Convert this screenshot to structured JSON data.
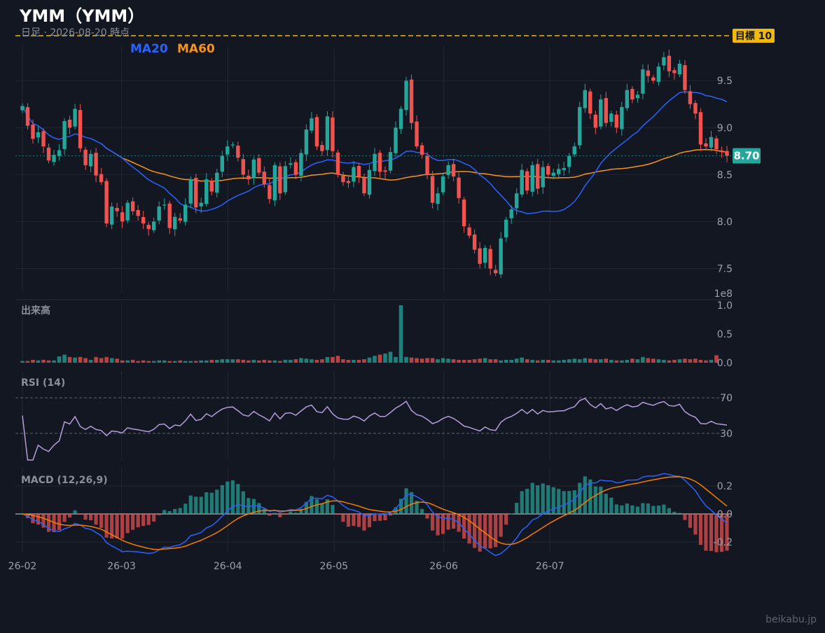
{
  "title": "YMM（YMM）",
  "subtitle": "日足 · 2026-08-20 時点",
  "watermark": "beikabu.jp",
  "colors": {
    "background": "#131722",
    "up": "#26a69a",
    "down": "#ef5350",
    "ma20": "#2962ff",
    "ma60": "#f7931a",
    "target": "#f0b90b",
    "rsi": "#b39ddb",
    "macd": "#2962ff",
    "signal": "#f57c00",
    "grid": "#232733",
    "text": "#9aa0ac"
  },
  "chart_data": [
    {
      "type": "candlestick",
      "panel": "price",
      "legend": [
        {
          "name": "MA20",
          "color": "#2962ff"
        },
        {
          "name": "MA60",
          "color": "#f7931a"
        }
      ],
      "x_tick_labels": [
        "26-02",
        "26-03",
        "26-04",
        "26-05",
        "26-06",
        "26-07"
      ],
      "x_tick_dates": [
        "2026-02-02",
        "2026-03-02",
        "2026-04-01",
        "2026-05-01",
        "2026-06-01",
        "2026-07-01"
      ],
      "y_ticks": [
        "7.5",
        "8.0",
        "8.5",
        "9.0",
        "9.5"
      ],
      "ylim": [
        7.25,
        9.8
      ],
      "last_price": 8.7,
      "last_price_label": "8.70",
      "target": 10,
      "target_label": "目標 10",
      "closes": [
        9.23,
        9.02,
        8.88,
        8.95,
        8.8,
        8.65,
        8.71,
        8.76,
        9.07,
        9.0,
        9.2,
        8.78,
        8.6,
        8.72,
        8.49,
        8.42,
        7.98,
        8.16,
        8.11,
        8.0,
        8.2,
        8.11,
        8.06,
        7.98,
        7.92,
        8.0,
        8.16,
        8.18,
        7.93,
        8.05,
        8.01,
        8.18,
        8.45,
        8.15,
        8.2,
        8.45,
        8.32,
        8.52,
        8.7,
        8.8,
        8.82,
        8.68,
        8.5,
        8.45,
        8.66,
        8.52,
        8.4,
        8.24,
        8.6,
        8.3,
        8.59,
        8.62,
        8.5,
        8.73,
        8.98,
        9.1,
        8.8,
        8.75,
        9.12,
        8.75,
        8.5,
        8.42,
        8.41,
        8.58,
        8.48,
        8.3,
        8.55,
        8.72,
        8.53,
        8.53,
        8.74,
        9.0,
        9.2,
        9.5,
        9.05,
        8.8,
        8.71,
        8.5,
        8.2,
        8.3,
        8.48,
        8.6,
        8.48,
        8.25,
        7.95,
        7.85,
        7.7,
        7.55,
        7.72,
        7.5,
        7.45,
        7.82,
        8.02,
        8.13,
        8.3,
        8.55,
        8.33,
        8.6,
        8.35,
        8.58,
        8.5,
        8.52,
        8.56,
        8.57,
        8.7,
        8.8,
        9.22,
        9.4,
        9.15,
        9.0,
        9.3,
        9.05,
        9.15,
        9.0,
        9.22,
        9.4,
        9.3,
        9.35,
        9.62,
        9.55,
        9.5,
        9.65,
        9.75,
        9.6,
        9.58,
        9.68,
        9.4,
        9.25,
        9.15,
        8.82,
        8.8,
        8.9,
        8.77,
        8.74,
        8.7
      ],
      "volumes": [
        0.03,
        0.03,
        0.05,
        0.04,
        0.05,
        0.04,
        0.04,
        0.11,
        0.14,
        0.1,
        0.09,
        0.1,
        0.08,
        0.05,
        0.1,
        0.08,
        0.1,
        0.08,
        0.07,
        0.04,
        0.04,
        0.05,
        0.03,
        0.04,
        0.03,
        0.03,
        0.04,
        0.04,
        0.03,
        0.03,
        0.04,
        0.03,
        0.03,
        0.03,
        0.04,
        0.04,
        0.05,
        0.05,
        0.06,
        0.06,
        0.06,
        0.06,
        0.05,
        0.04,
        0.05,
        0.04,
        0.05,
        0.04,
        0.04,
        0.03,
        0.05,
        0.05,
        0.06,
        0.08,
        0.07,
        0.06,
        0.05,
        0.06,
        0.1,
        0.1,
        0.12,
        0.06,
        0.05,
        0.05,
        0.05,
        0.06,
        0.09,
        0.12,
        0.14,
        0.16,
        0.19,
        0.1,
        1.0,
        0.1,
        0.09,
        0.08,
        0.07,
        0.08,
        0.08,
        0.06,
        0.08,
        0.07,
        0.06,
        0.05,
        0.05,
        0.05,
        0.06,
        0.07,
        0.08,
        0.06,
        0.06,
        0.04,
        0.05,
        0.05,
        0.07,
        0.09,
        0.06,
        0.05,
        0.04,
        0.05,
        0.05,
        0.04,
        0.04,
        0.05,
        0.06,
        0.07,
        0.06,
        0.08,
        0.07,
        0.06,
        0.06,
        0.07,
        0.05,
        0.04,
        0.04,
        0.05,
        0.07,
        0.06,
        0.1,
        0.08,
        0.07,
        0.06,
        0.05,
        0.04,
        0.05,
        0.06,
        0.07,
        0.06,
        0.07,
        0.05,
        0.04,
        0.05,
        0.13
      ]
    },
    {
      "type": "bar",
      "panel": "volume",
      "label": "出来高",
      "scale_label": "1e8",
      "y_ticks": [
        "1.0",
        "0.5",
        "0.0"
      ],
      "ylim": [
        0,
        1.0
      ]
    },
    {
      "type": "line",
      "panel": "rsi",
      "label": "RSI (14)",
      "y_ticks": [
        "70",
        "30"
      ],
      "ylim": [
        0,
        100
      ]
    },
    {
      "type": "line",
      "panel": "macd",
      "label": "MACD (12,26,9)",
      "y_ticks": [
        "0.2",
        "0.0",
        "-0.2"
      ],
      "ylim": [
        -0.28,
        0.33
      ]
    }
  ]
}
